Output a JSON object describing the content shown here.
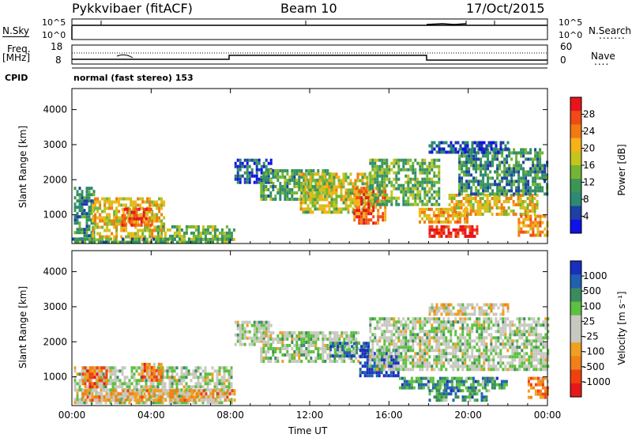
{
  "header": {
    "radar": "Pykkvibaer (fitACF)",
    "beam": "Beam 10",
    "date": "17/Oct/2015"
  },
  "strip_labels": {
    "nsky": "N.Sky",
    "nsearch": "N.Search",
    "freq": "Freq.",
    "freq_unit": "[MHz]",
    "nave": "Nave",
    "cpid": "CPID",
    "cpid_value": "normal (fast stereo) 153"
  },
  "strip_ticks": {
    "noise_left": [
      "10^5",
      "10^0"
    ],
    "noise_right": [
      "10^5",
      "10^0"
    ],
    "freq_left": [
      "18",
      "8"
    ],
    "nave_right": [
      "60",
      "0"
    ]
  },
  "chart_data": [
    {
      "type": "heatmap",
      "panel": "power",
      "ylabel": "Slant Range [km]",
      "xlabel": "",
      "ylim": [
        180,
        4600
      ],
      "yticks": [
        1000,
        2000,
        3000,
        4000
      ],
      "xticks": [
        "00:00",
        "04:00",
        "08:00",
        "12:00",
        "16:00",
        "20:00",
        "00:00"
      ],
      "x_range_hours": [
        0,
        24
      ],
      "colorbar": {
        "label": "Power [dB]",
        "ticks": [
          "28",
          "24",
          "20",
          "16",
          "12",
          "8",
          "4"
        ],
        "colors": [
          "#e8141c",
          "#f04a16",
          "#f27a10",
          "#f6b218",
          "#c6c41e",
          "#74b534",
          "#3a9656",
          "#2d8a72",
          "#1d3fa6",
          "#1010e8"
        ]
      },
      "regions": [
        {
          "t0": 0.1,
          "t1": 1.1,
          "r0": 300,
          "r1": 1800,
          "level": 0.3
        },
        {
          "t0": 1.0,
          "t1": 4.6,
          "r0": 300,
          "r1": 1500,
          "level": 0.6
        },
        {
          "t0": 2.5,
          "t1": 4.0,
          "r0": 700,
          "r1": 1200,
          "level": 0.85
        },
        {
          "t0": 4.3,
          "t1": 8.2,
          "r0": 300,
          "r1": 700,
          "level": 0.45
        },
        {
          "t0": 0.0,
          "t1": 8.0,
          "r0": 200,
          "r1": 350,
          "level": 0.35
        },
        {
          "t0": 8.2,
          "t1": 10.0,
          "r0": 1900,
          "r1": 2600,
          "level": 0.2
        },
        {
          "t0": 9.5,
          "t1": 13.0,
          "r0": 1400,
          "r1": 2300,
          "level": 0.35
        },
        {
          "t0": 11.5,
          "t1": 15.2,
          "r0": 1100,
          "r1": 2200,
          "level": 0.55
        },
        {
          "t0": 14.2,
          "t1": 15.8,
          "r0": 800,
          "r1": 1800,
          "level": 0.8
        },
        {
          "t0": 15.0,
          "t1": 18.5,
          "r0": 1300,
          "r1": 2600,
          "level": 0.4
        },
        {
          "t0": 17.5,
          "t1": 20.0,
          "r0": 800,
          "r1": 1200,
          "level": 0.7
        },
        {
          "t0": 18.0,
          "t1": 20.5,
          "r0": 350,
          "r1": 700,
          "level": 0.95
        },
        {
          "t0": 19.0,
          "t1": 23.5,
          "r0": 1000,
          "r1": 1600,
          "level": 0.6
        },
        {
          "t0": 19.5,
          "t1": 24.0,
          "r0": 1600,
          "r1": 2900,
          "level": 0.3
        },
        {
          "t0": 18.0,
          "t1": 22.0,
          "r0": 2800,
          "r1": 3100,
          "level": 0.15
        },
        {
          "t0": 22.5,
          "t1": 24.0,
          "r0": 400,
          "r1": 1000,
          "level": 0.7
        }
      ]
    },
    {
      "type": "heatmap",
      "panel": "velocity",
      "ylabel": "Slant Range [km]",
      "xlabel": "Time UT",
      "ylim": [
        180,
        4600
      ],
      "yticks": [
        1000,
        2000,
        3000,
        4000
      ],
      "xticks": [
        "00:00",
        "04:00",
        "08:00",
        "12:00",
        "16:00",
        "20:00",
        "00:00"
      ],
      "x_range_hours": [
        0,
        24
      ],
      "colorbar": {
        "label": "Velocity [m s⁻¹]",
        "ticks": [
          "1000",
          "500",
          "100",
          "25",
          "-25",
          "-100",
          "-500",
          "-1000"
        ],
        "colors": [
          "#1a2ec0",
          "#2060b0",
          "#3a8c60",
          "#5cc040",
          "#c8c8c0",
          "#c8c8c0",
          "#f0a020",
          "#f08018",
          "#f04010",
          "#e81818"
        ]
      },
      "regions": [
        {
          "t0": 0.1,
          "t1": 8.0,
          "r0": 300,
          "r1": 1300,
          "level": 0.45
        },
        {
          "t0": 0.5,
          "t1": 1.8,
          "r0": 700,
          "r1": 1300,
          "level": 0.75
        },
        {
          "t0": 3.5,
          "t1": 4.5,
          "r0": 900,
          "r1": 1400,
          "level": 0.75
        },
        {
          "t0": 0.5,
          "t1": 8.2,
          "r0": 350,
          "r1": 650,
          "level": 0.65
        },
        {
          "t0": 8.2,
          "t1": 10.0,
          "r0": 1900,
          "r1": 2600,
          "level": 0.45
        },
        {
          "t0": 9.5,
          "t1": 14.5,
          "r0": 1400,
          "r1": 2300,
          "level": 0.45
        },
        {
          "t0": 13.0,
          "t1": 15.0,
          "r0": 1600,
          "r1": 2000,
          "level": 0.25
        },
        {
          "t0": 14.5,
          "t1": 16.5,
          "r0": 1000,
          "r1": 1800,
          "level": 0.05
        },
        {
          "t0": 15.0,
          "t1": 24.0,
          "r0": 1200,
          "r1": 2700,
          "level": 0.45
        },
        {
          "t0": 16.5,
          "t1": 22.0,
          "r0": 700,
          "r1": 1000,
          "level": 0.25
        },
        {
          "t0": 18.0,
          "t1": 21.0,
          "r0": 350,
          "r1": 650,
          "level": 0.25
        },
        {
          "t0": 18.0,
          "t1": 22.0,
          "r0": 2800,
          "r1": 3100,
          "level": 0.55
        },
        {
          "t0": 23.0,
          "t1": 24.0,
          "r0": 400,
          "r1": 1000,
          "level": 0.75
        }
      ]
    }
  ]
}
